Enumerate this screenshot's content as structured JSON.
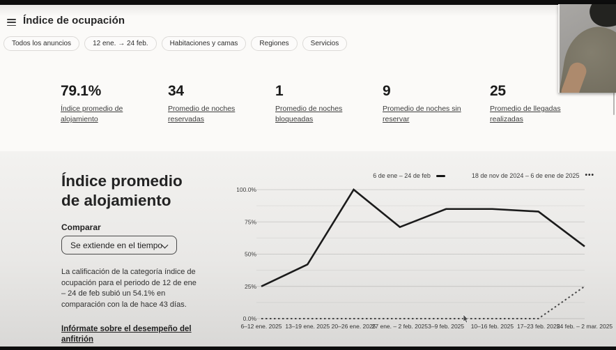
{
  "header": {
    "title": "Índice de ocupación"
  },
  "filters": {
    "chips": [
      {
        "label": "Todos los anuncios"
      },
      {
        "label": "12 ene.  →  24 feb."
      },
      {
        "label": "Habitaciones y camas"
      },
      {
        "label": "Regiones"
      },
      {
        "label": "Servicios"
      }
    ]
  },
  "stats": [
    {
      "value": "79.1%",
      "label": "Índice promedio de alojamiento"
    },
    {
      "value": "34",
      "label": "Promedio de noches reservadas"
    },
    {
      "value": "1",
      "label": "Promedio de noches bloqueadas"
    },
    {
      "value": "9",
      "label": "Promedio de noches sin reservar"
    },
    {
      "value": "25",
      "label": "Promedio de llegadas realizadas"
    }
  ],
  "panel": {
    "heading": "Índice promedio de alojamiento",
    "compare_label": "Comparar",
    "compare_value": "Se extiende en el tiempo",
    "description": "La calificación de la categoría índice de ocupación para el periodo de 12 de ene – 24 de feb subió un 54.1% en comparación con la de hace 43 días.",
    "link_text": "Infórmate sobre el desempeño del anfitrión"
  },
  "chart_data": {
    "type": "line",
    "title": "Índice promedio de alojamiento",
    "categories": [
      "6–12 ene. 2025",
      "13–19 ene. 2025",
      "20–26 ene. 2025",
      "27 ene. – 2 feb. 2025",
      "3–9 feb. 2025",
      "10–16 feb. 2025",
      "17–23 feb. 2025",
      "24 feb. – 2 mar. 2025"
    ],
    "series": [
      {
        "name": "6 de ene – 24 de feb",
        "style": "solid",
        "marker_glyph": "",
        "values": [
          25,
          42,
          100,
          71,
          85,
          85,
          83,
          56
        ]
      },
      {
        "name": "18 de nov de 2024 – 6 de ene de 2025",
        "style": "dotted",
        "marker_glyph": "•••",
        "values": [
          0,
          0,
          0,
          0,
          0,
          0,
          0,
          25
        ]
      }
    ],
    "ylim": [
      0,
      100
    ],
    "ytick_values": [
      0,
      25,
      50,
      75,
      100
    ],
    "ytick_labels": [
      "0.0%",
      "25%",
      "50%",
      "75%",
      "100.0%"
    ],
    "grid": true,
    "legend_position": "top-right",
    "colors": {
      "solid_line": "#1b1b1b",
      "dotted_line": "#454545"
    }
  }
}
